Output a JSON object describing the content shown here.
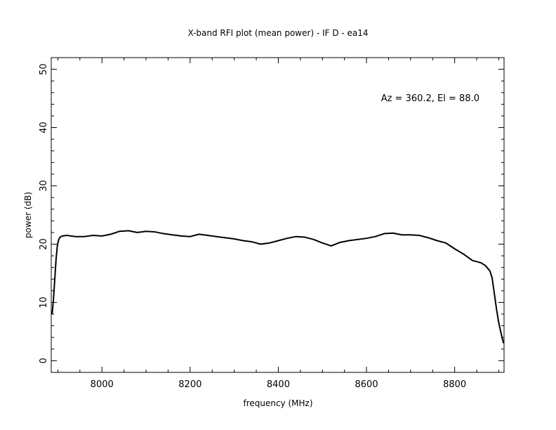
{
  "chart_data": {
    "type": "line",
    "title": "X-band RFI plot (mean power) - IF D - ea14",
    "xlabel": "frequency (MHz)",
    "ylabel": "power (dB)",
    "annotation": "Az = 360.2, El = 88.0",
    "xlim": [
      7885,
      8912
    ],
    "ylim": [
      -2,
      52
    ],
    "xticks_major": [
      8000,
      8200,
      8400,
      8600,
      8800
    ],
    "xtick_labels": [
      "8000",
      "8200",
      "8400",
      "8600",
      "8800"
    ],
    "yticks_major": [
      0,
      10,
      20,
      30,
      40,
      50
    ],
    "ytick_labels": [
      "0",
      "10",
      "20",
      "30",
      "40",
      "50"
    ],
    "grid": false,
    "line_color": "#000000",
    "series": [
      {
        "x": [
          7887,
          7890,
          7893,
          7896,
          7899,
          7902,
          7905,
          7910,
          7920,
          7940,
          7960,
          7980,
          8000,
          8020,
          8040,
          8060,
          8080,
          8100,
          8120,
          8140,
          8160,
          8180,
          8200,
          8220,
          8240,
          8260,
          8280,
          8300,
          8320,
          8340,
          8360,
          8380,
          8400,
          8420,
          8440,
          8460,
          8480,
          8500,
          8520,
          8540,
          8560,
          8580,
          8600,
          8620,
          8640,
          8660,
          8680,
          8700,
          8720,
          8740,
          8760,
          8780,
          8800,
          8820,
          8840,
          8860,
          8870,
          8880,
          8885,
          8890,
          8895,
          8900,
          8905,
          8908,
          8911
        ],
        "y": [
          8.0,
          10.5,
          14.0,
          17.5,
          19.8,
          20.8,
          21.2,
          21.4,
          21.5,
          21.3,
          21.3,
          21.5,
          21.4,
          21.7,
          22.2,
          22.3,
          22.0,
          22.2,
          22.1,
          21.8,
          21.6,
          21.4,
          21.3,
          21.7,
          21.5,
          21.3,
          21.1,
          20.9,
          20.6,
          20.4,
          20.0,
          20.2,
          20.6,
          21.0,
          21.3,
          21.2,
          20.8,
          20.2,
          19.7,
          20.3,
          20.6,
          20.8,
          21.0,
          21.3,
          21.8,
          21.9,
          21.6,
          21.6,
          21.5,
          21.1,
          20.6,
          20.2,
          19.2,
          18.3,
          17.2,
          16.8,
          16.3,
          15.4,
          14.2,
          11.5,
          8.8,
          6.5,
          4.8,
          3.8,
          3.0
        ]
      }
    ]
  }
}
